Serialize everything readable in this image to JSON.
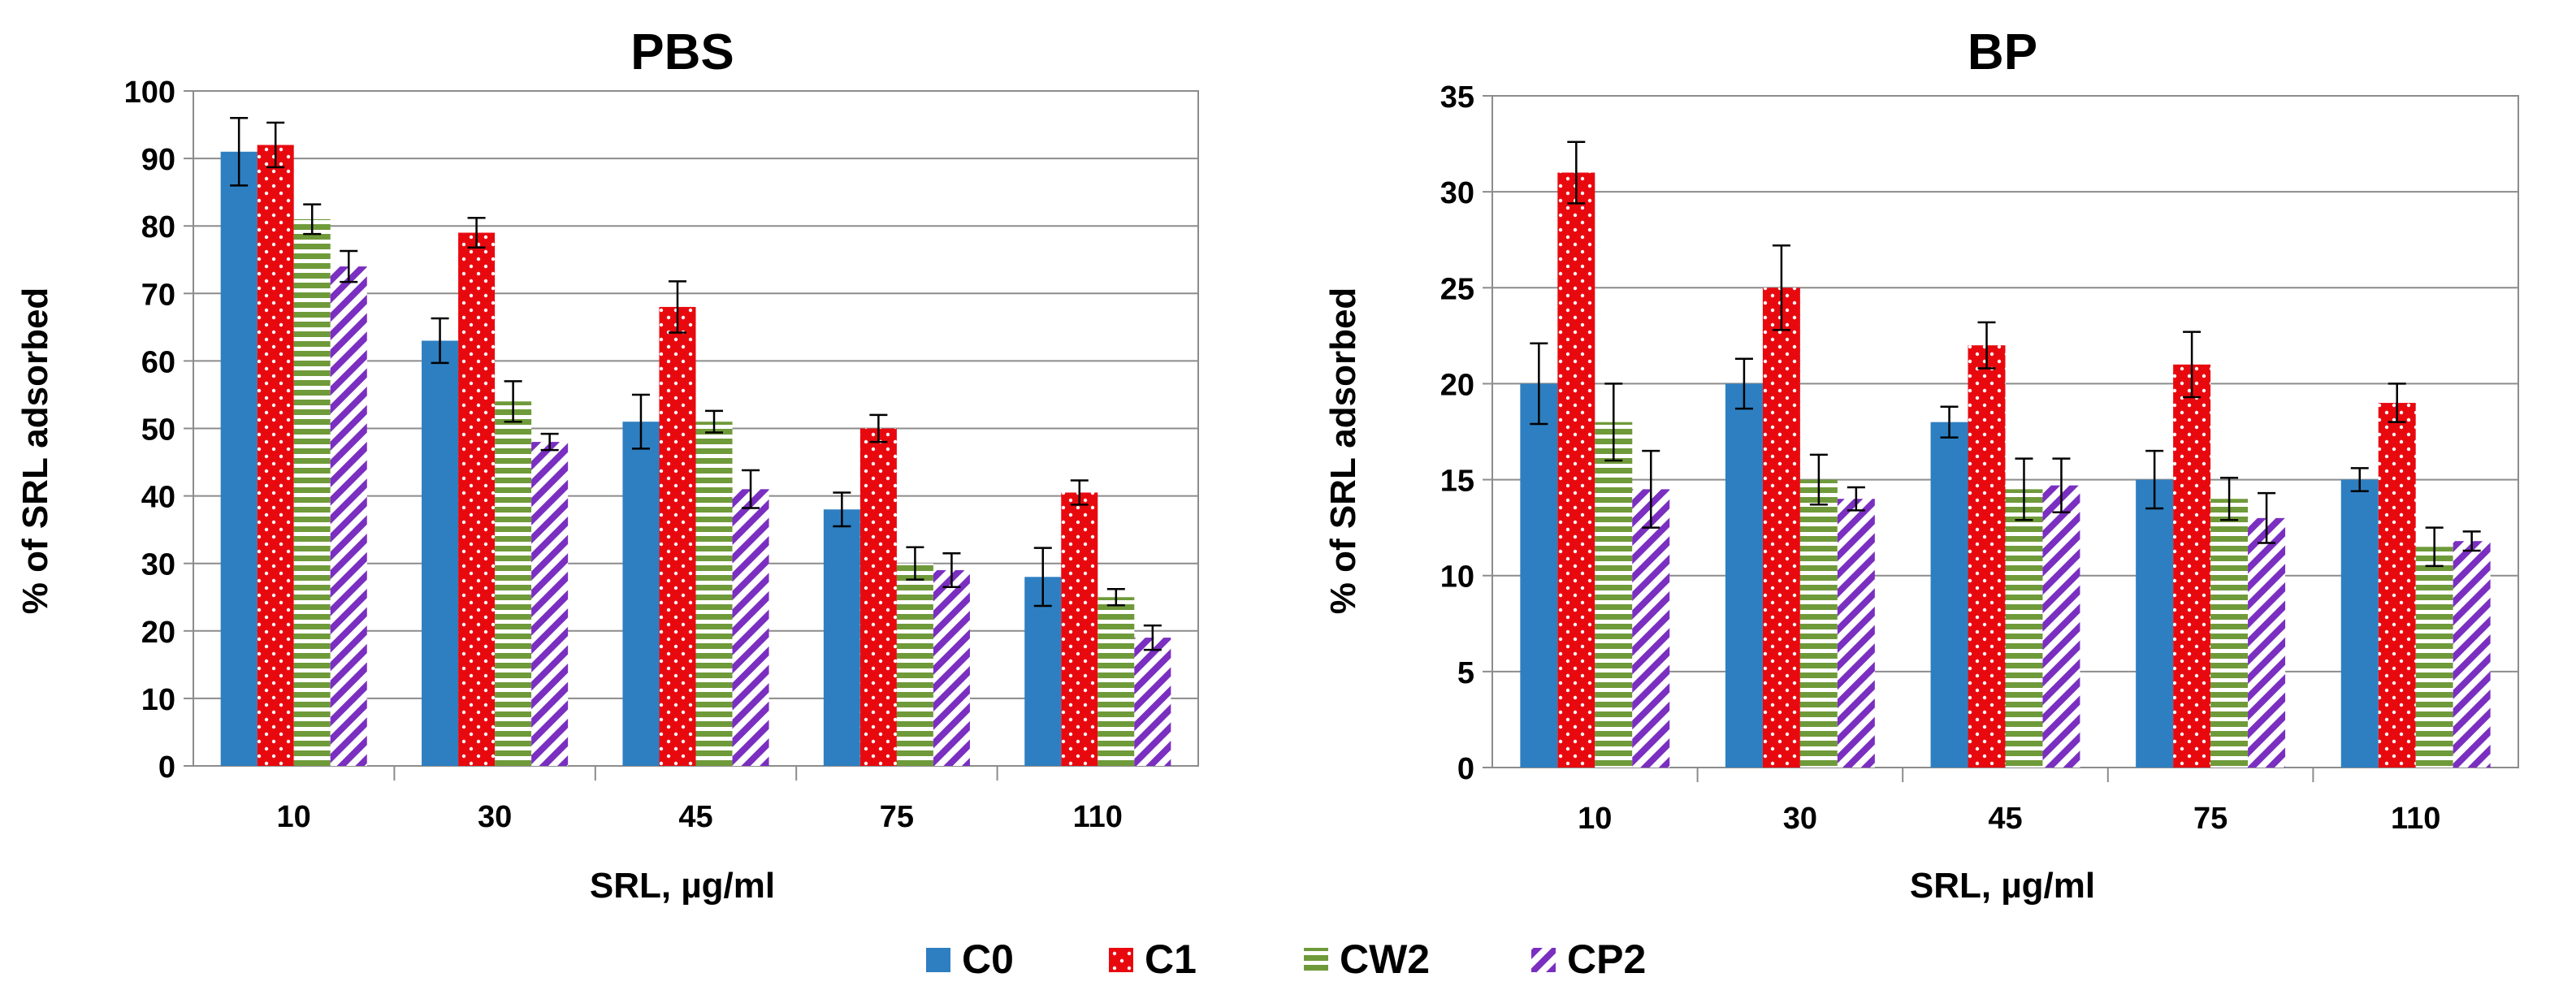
{
  "chart_data": [
    {
      "type": "bar",
      "title": "PBS",
      "xlabel": "SRL, µg/ml",
      "ylabel": "% of SRL adsorbed",
      "categories": [
        "10",
        "30",
        "45",
        "75",
        "110"
      ],
      "ylim": [
        0,
        100
      ],
      "yticks": [
        0,
        10,
        20,
        30,
        40,
        50,
        60,
        70,
        80,
        90,
        100
      ],
      "grid": true,
      "series": [
        {
          "name": "C0",
          "values": [
            91,
            63,
            51,
            38,
            28
          ],
          "errors": [
            5,
            3.3,
            4,
            2.5,
            4.3
          ]
        },
        {
          "name": "C1",
          "values": [
            92,
            79,
            68,
            50,
            40.5
          ],
          "errors": [
            3.3,
            2.2,
            3.8,
            2,
            1.8
          ]
        },
        {
          "name": "CW2",
          "values": [
            81,
            54,
            51,
            30,
            25
          ],
          "errors": [
            2.2,
            3,
            1.6,
            2.4,
            1.2
          ]
        },
        {
          "name": "CP2",
          "values": [
            74,
            48,
            41,
            29,
            19
          ],
          "errors": [
            2.3,
            1.2,
            2.8,
            2.5,
            1.8
          ]
        }
      ]
    },
    {
      "type": "bar",
      "title": "BP",
      "xlabel": "SRL, µg/ml",
      "ylabel": "% of SRL adsorbed",
      "categories": [
        "10",
        "30",
        "45",
        "75",
        "110"
      ],
      "ylim": [
        0,
        35
      ],
      "yticks": [
        0,
        5,
        10,
        15,
        20,
        25,
        30,
        35
      ],
      "grid": true,
      "series": [
        {
          "name": "C0",
          "values": [
            20,
            20,
            18,
            15,
            15
          ],
          "errors": [
            2.1,
            1.3,
            0.8,
            1.5,
            0.6
          ]
        },
        {
          "name": "C1",
          "values": [
            31,
            25,
            22,
            21,
            19
          ],
          "errors": [
            1.6,
            2.2,
            1.2,
            1.7,
            1
          ]
        },
        {
          "name": "CW2",
          "values": [
            18,
            15,
            14.5,
            14,
            11.5
          ],
          "errors": [
            2,
            1.3,
            1.6,
            1.1,
            1
          ]
        },
        {
          "name": "CP2",
          "values": [
            14.5,
            14,
            14.7,
            13,
            11.8
          ],
          "errors": [
            2,
            0.6,
            1.4,
            1.3,
            0.5
          ]
        }
      ]
    }
  ],
  "legend": {
    "position": "bottom-center",
    "items": [
      {
        "name": "C0",
        "color": "#2e7fc1",
        "pattern": "solid"
      },
      {
        "name": "C1",
        "color": "#e8090f",
        "pattern": "dots"
      },
      {
        "name": "CW2",
        "color": "#6f9a3a",
        "pattern": "horizontal-stripes"
      },
      {
        "name": "CP2",
        "color": "#7a2fc0",
        "pattern": "diagonal-stripes"
      }
    ]
  }
}
